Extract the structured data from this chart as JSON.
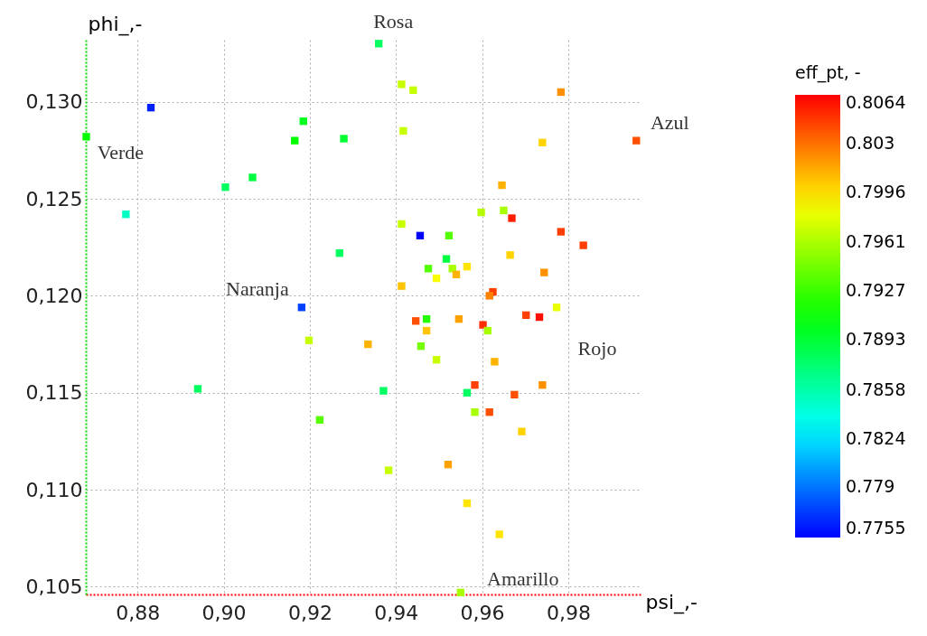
{
  "chart_data": {
    "type": "scatter",
    "xlabel": "psi_,-",
    "ylabel": "phi_,-",
    "clabel": "eff_pt, -",
    "marker": "square",
    "grid": true,
    "xlim": [
      0.868,
      0.997
    ],
    "ylim": [
      0.1046,
      0.1332
    ],
    "xticks": [
      {
        "value": 0.88,
        "label": "0,88"
      },
      {
        "value": 0.9,
        "label": "0,90"
      },
      {
        "value": 0.92,
        "label": "0,92"
      },
      {
        "value": 0.94,
        "label": "0,94"
      },
      {
        "value": 0.96,
        "label": "0,96"
      },
      {
        "value": 0.98,
        "label": "0,98"
      }
    ],
    "yticks": [
      {
        "value": 0.105,
        "label": "0,105"
      },
      {
        "value": 0.11,
        "label": "0,110"
      },
      {
        "value": 0.115,
        "label": "0,115"
      },
      {
        "value": 0.12,
        "label": "0,120"
      },
      {
        "value": 0.125,
        "label": "0,125"
      },
      {
        "value": 0.13,
        "label": "0,130"
      }
    ],
    "clim": [
      0.7755,
      0.8064
    ],
    "cticks": [
      0.7755,
      0.779,
      0.7824,
      0.7858,
      0.7893,
      0.7927,
      0.7961,
      0.7996,
      0.803,
      0.8064
    ],
    "x": [
      0.8681,
      0.8831,
      0.8773,
      0.9004,
      0.9067,
      0.9165,
      0.9185,
      0.9279,
      0.9269,
      0.9181,
      0.936,
      0.9413,
      0.944,
      0.9417,
      0.9783,
      0.974,
      0.9958,
      0.9646,
      0.9413,
      0.9456,
      0.9523,
      0.9598,
      0.965,
      0.9669,
      0.9783,
      0.9835,
      0.9517,
      0.9475,
      0.9531,
      0.9565,
      0.9494,
      0.954,
      0.9665,
      0.9744,
      0.9413,
      0.9625,
      0.9617,
      0.9773,
      0.9702,
      0.9733,
      0.9446,
      0.9471,
      0.9546,
      0.9602,
      0.9613,
      0.9471,
      0.9198,
      0.9335,
      0.9458,
      0.9494,
      0.9629,
      0.894,
      0.9223,
      0.9371,
      0.9583,
      0.9565,
      0.9675,
      0.974,
      0.9583,
      0.9617,
      0.9692,
      0.9383,
      0.9521,
      0.9565,
      0.964,
      0.955
    ],
    "values": [
      0.1282,
      0.1297,
      0.1242,
      0.1256,
      0.1261,
      0.128,
      0.129,
      0.1281,
      0.1222,
      0.1194,
      0.133,
      0.1309,
      0.1306,
      0.1285,
      0.1305,
      0.1279,
      0.128,
      0.1257,
      0.1237,
      0.1231,
      0.1231,
      0.1243,
      0.1244,
      0.124,
      0.1233,
      0.1226,
      0.1219,
      0.1214,
      0.1214,
      0.1215,
      0.1209,
      0.1211,
      0.1221,
      0.1212,
      0.1205,
      0.1202,
      0.12,
      0.1194,
      0.119,
      0.1189,
      0.1187,
      0.1188,
      0.1188,
      0.1185,
      0.1182,
      0.1182,
      0.1177,
      0.1175,
      0.1174,
      0.1167,
      0.1166,
      0.1152,
      0.1136,
      0.1151,
      0.1154,
      0.115,
      0.1149,
      0.1154,
      0.114,
      0.114,
      0.113,
      0.111,
      0.1113,
      0.1093,
      0.1077,
      0.1047
    ],
    "cvalues": [
      0.791,
      0.7765,
      0.785,
      0.788,
      0.789,
      0.791,
      0.79,
      0.7895,
      0.788,
      0.7775,
      0.788,
      0.797,
      0.797,
      0.797,
      0.802,
      0.8,
      0.804,
      0.801,
      0.797,
      0.7755,
      0.7935,
      0.7965,
      0.796,
      0.8055,
      0.8045,
      0.8045,
      0.789,
      0.7935,
      0.796,
      0.7995,
      0.7985,
      0.801,
      0.8,
      0.802,
      0.8005,
      0.8045,
      0.8025,
      0.798,
      0.8045,
      0.806,
      0.804,
      0.792,
      0.8015,
      0.805,
      0.796,
      0.8005,
      0.797,
      0.801,
      0.7945,
      0.797,
      0.801,
      0.788,
      0.7935,
      0.788,
      0.8045,
      0.788,
      0.804,
      0.802,
      0.796,
      0.804,
      0.8,
      0.797,
      0.8015,
      0.7995,
      0.7995,
      0.796
    ],
    "annotations": [
      {
        "text": "Rosa",
        "x": 0.936,
        "y": 0.133
      },
      {
        "text": "Verde",
        "x": 0.8681,
        "y": 0.1282
      },
      {
        "text": "Azul",
        "x": 0.9958,
        "y": 0.128
      },
      {
        "text": "Naranja",
        "x": 0.9181,
        "y": 0.1194
      },
      {
        "text": "Amarillo",
        "x": 0.955,
        "y": 0.1047
      },
      {
        "text": "Rojo",
        "x": 0.9733,
        "y": 0.1189
      }
    ]
  }
}
